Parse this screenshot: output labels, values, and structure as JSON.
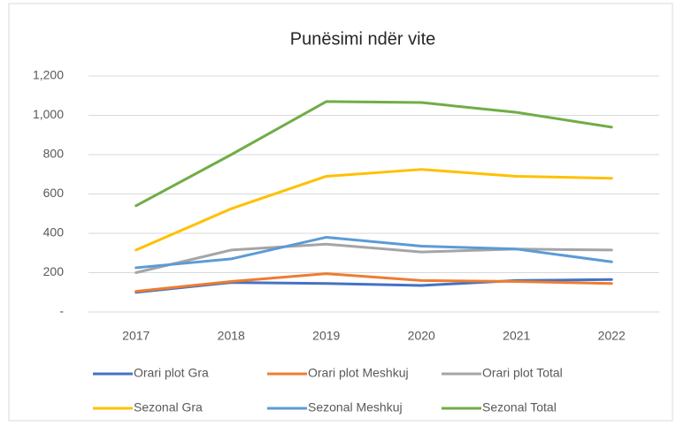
{
  "chart_data": {
    "type": "line",
    "title": "Punësimi ndër vite",
    "categories": [
      "2017",
      "2018",
      "2019",
      "2020",
      "2021",
      "2022"
    ],
    "series": [
      {
        "name": "Orari plot Gra",
        "color": "#4472c4",
        "values": [
          100,
          150,
          145,
          135,
          160,
          165
        ]
      },
      {
        "name": "Orari plot Meshkuj",
        "color": "#ed7d31",
        "values": [
          105,
          155,
          195,
          160,
          155,
          145
        ]
      },
      {
        "name": "Orari plot Total",
        "color": "#a5a5a5",
        "values": [
          200,
          315,
          345,
          305,
          320,
          315
        ]
      },
      {
        "name": "Sezonal Gra",
        "color": "#ffc000",
        "values": [
          315,
          525,
          690,
          725,
          690,
          680
        ]
      },
      {
        "name": "Sezonal Meshkuj",
        "color": "#5b9bd5",
        "values": [
          225,
          270,
          380,
          335,
          320,
          255
        ]
      },
      {
        "name": "Sezonal Total",
        "color": "#70ad47",
        "values": [
          540,
          800,
          1070,
          1065,
          1015,
          940
        ]
      }
    ],
    "ylim": [
      0,
      1200
    ],
    "yticks": [
      {
        "value": 0,
        "label": "-"
      },
      200,
      400,
      600,
      800,
      {
        "value": 1000,
        "label": "1,000"
      },
      {
        "value": 1200,
        "label": "1,200"
      }
    ],
    "grid": true,
    "legend": "bottom"
  }
}
